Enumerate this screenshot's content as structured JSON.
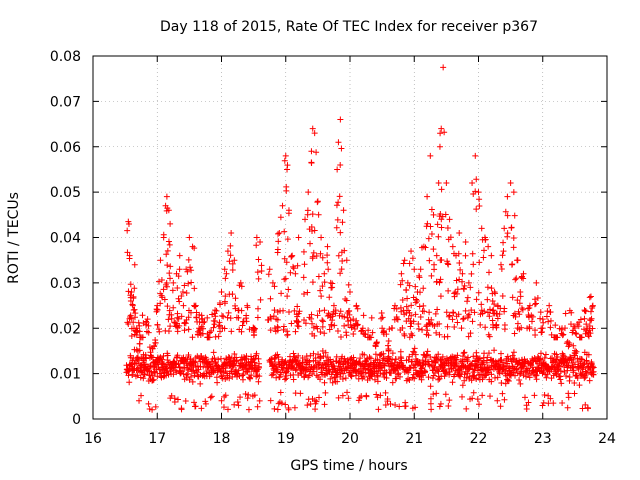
{
  "chart_data": {
    "type": "scatter",
    "title": "Day 118 of 2015, Rate Of TEC Index for receiver p367",
    "xlabel": "GPS time / hours",
    "ylabel": "ROTI / TECUs",
    "xlim": [
      16,
      24
    ],
    "ylim": [
      0,
      0.08
    ],
    "xticks": [
      "16",
      "17",
      "18",
      "19",
      "20",
      "21",
      "22",
      "23",
      "24"
    ],
    "yticks": [
      "0",
      "0.01",
      "0.02",
      "0.03",
      "0.04",
      "0.05",
      "0.06",
      "0.07",
      "0.08"
    ],
    "grid": true,
    "marker": "+",
    "series": [
      {
        "name": "ROTI",
        "color": "#ff0000",
        "x": [
          16.55,
          16.57,
          16.6,
          16.62,
          16.65,
          16.68,
          16.7,
          16.75,
          16.8,
          16.85,
          16.9,
          16.95,
          17.0,
          17.05,
          17.1,
          17.13,
          17.15,
          17.18,
          17.2,
          17.25,
          17.3,
          17.35,
          17.4,
          17.45,
          17.5,
          17.55,
          17.6,
          17.65,
          17.7,
          17.8,
          17.9,
          18.0,
          18.05,
          18.1,
          18.15,
          18.2,
          18.3,
          18.4,
          18.5,
          18.55,
          18.6,
          18.75,
          18.8,
          18.85,
          18.9,
          18.95,
          19.0,
          19.02,
          19.05,
          19.1,
          19.15,
          19.2,
          19.3,
          19.35,
          19.4,
          19.42,
          19.45,
          19.5,
          19.55,
          19.6,
          19.65,
          19.7,
          19.75,
          19.8,
          19.82,
          19.85,
          19.9,
          19.95,
          20.0,
          20.05,
          20.1,
          20.2,
          20.3,
          20.4,
          20.5,
          20.6,
          20.7,
          20.8,
          20.85,
          20.9,
          20.95,
          21.0,
          21.05,
          21.1,
          21.15,
          21.2,
          21.25,
          21.3,
          21.35,
          21.38,
          21.4,
          21.42,
          21.45,
          21.5,
          21.55,
          21.6,
          21.65,
          21.7,
          21.75,
          21.8,
          21.85,
          21.9,
          21.95,
          22.0,
          22.05,
          22.1,
          22.15,
          22.2,
          22.25,
          22.3,
          22.35,
          22.4,
          22.45,
          22.5,
          22.55,
          22.6,
          22.65,
          22.7,
          22.8,
          22.9,
          23.0,
          23.1,
          23.2,
          23.3,
          23.4,
          23.5,
          23.6,
          23.65,
          23.7,
          23.75,
          23.78
        ],
        "y": [
          0.0435,
          0.036,
          0.028,
          0.025,
          0.034,
          0.02,
          0.015,
          0.018,
          0.012,
          0.022,
          0.014,
          0.016,
          0.025,
          0.035,
          0.04,
          0.047,
          0.049,
          0.046,
          0.043,
          0.03,
          0.032,
          0.036,
          0.028,
          0.033,
          0.04,
          0.038,
          0.025,
          0.02,
          0.022,
          0.018,
          0.024,
          0.028,
          0.033,
          0.037,
          0.041,
          0.035,
          0.03,
          0.025,
          0.02,
          0.04,
          0.039,
          0.033,
          0.03,
          0.022,
          0.041,
          0.047,
          0.058,
          0.055,
          0.046,
          0.036,
          0.032,
          0.04,
          0.044,
          0.05,
          0.059,
          0.064,
          0.063,
          0.048,
          0.04,
          0.032,
          0.038,
          0.03,
          0.025,
          0.055,
          0.061,
          0.066,
          0.046,
          0.035,
          0.028,
          0.022,
          0.025,
          0.02,
          0.018,
          0.016,
          0.02,
          0.015,
          0.025,
          0.032,
          0.035,
          0.03,
          0.037,
          0.033,
          0.028,
          0.033,
          0.038,
          0.049,
          0.058,
          0.045,
          0.036,
          0.052,
          0.06,
          0.064,
          0.0775,
          0.052,
          0.044,
          0.038,
          0.036,
          0.041,
          0.032,
          0.039,
          0.03,
          0.052,
          0.058,
          0.05,
          0.042,
          0.04,
          0.038,
          0.036,
          0.028,
          0.025,
          0.034,
          0.042,
          0.049,
          0.052,
          0.05,
          0.035,
          0.028,
          0.032,
          0.025,
          0.03,
          0.022,
          0.025,
          0.018,
          0.02,
          0.016,
          0.014,
          0.018,
          0.024,
          0.02,
          0.027,
          0.025
        ],
        "baseline_band": [
          0.005,
          0.018
        ]
      }
    ]
  }
}
